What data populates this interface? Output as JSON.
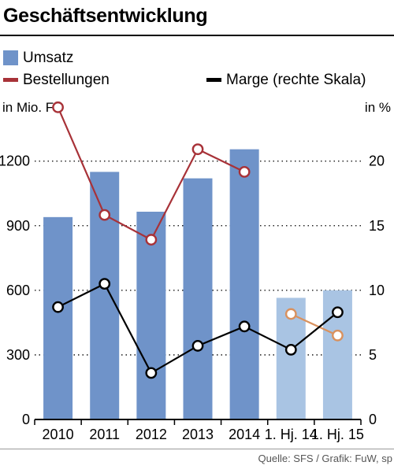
{
  "title": "Geschäftsentwicklung",
  "legend": [
    {
      "label": "Umsatz",
      "color": "#6f93c9",
      "kind": "bar"
    },
    {
      "label": "Bestellungen",
      "color": "#a83238",
      "kind": "line"
    },
    {
      "label": "Marge (rechte Skala)",
      "color": "#000000",
      "kind": "line"
    }
  ],
  "left_unit": "in Mio. Fr.",
  "right_unit": "in %",
  "source": "Quelle: SFS / Grafik: FuW, sp",
  "chart_data": {
    "type": "bar",
    "categories": [
      "2010",
      "2011",
      "2012",
      "2013",
      "2014",
      "1. Hj. 14",
      "1. Hj. 15"
    ],
    "ylim": [
      0,
      1400
    ],
    "y2lim": [
      0,
      23.33
    ],
    "yticks": [
      0,
      300,
      600,
      900,
      1200
    ],
    "y2ticks": [
      0,
      5,
      10,
      15,
      20
    ],
    "grid": "dotted-horizontal",
    "series": [
      {
        "name": "Umsatz",
        "type": "bar",
        "axis": "left",
        "values": [
          940,
          1150,
          965,
          1120,
          1255,
          565,
          600
        ],
        "colors": [
          "#6f93c9",
          "#6f93c9",
          "#6f93c9",
          "#6f93c9",
          "#6f93c9",
          "#a9c4e3",
          "#a9c4e3"
        ]
      },
      {
        "name": "Bestellungen",
        "type": "line",
        "axis": "left",
        "segments": [
          {
            "color": "#a83238",
            "points": [
              [
                0,
                1450
              ],
              [
                1,
                950
              ],
              [
                2,
                835
              ],
              [
                3,
                1255
              ],
              [
                4,
                1150
              ]
            ]
          },
          {
            "color": "#d9915e",
            "points": [
              [
                5,
                490
              ],
              [
                6,
                390
              ]
            ]
          }
        ]
      },
      {
        "name": "Marge (rechte Skala)",
        "type": "line",
        "axis": "right",
        "segments": [
          {
            "color": "#000000",
            "points": [
              [
                0,
                8.7
              ],
              [
                1,
                10.5
              ],
              [
                2,
                3.6
              ],
              [
                3,
                5.7
              ],
              [
                4,
                7.2
              ],
              [
                5,
                5.4
              ],
              [
                6,
                8.3
              ]
            ]
          }
        ]
      }
    ]
  }
}
